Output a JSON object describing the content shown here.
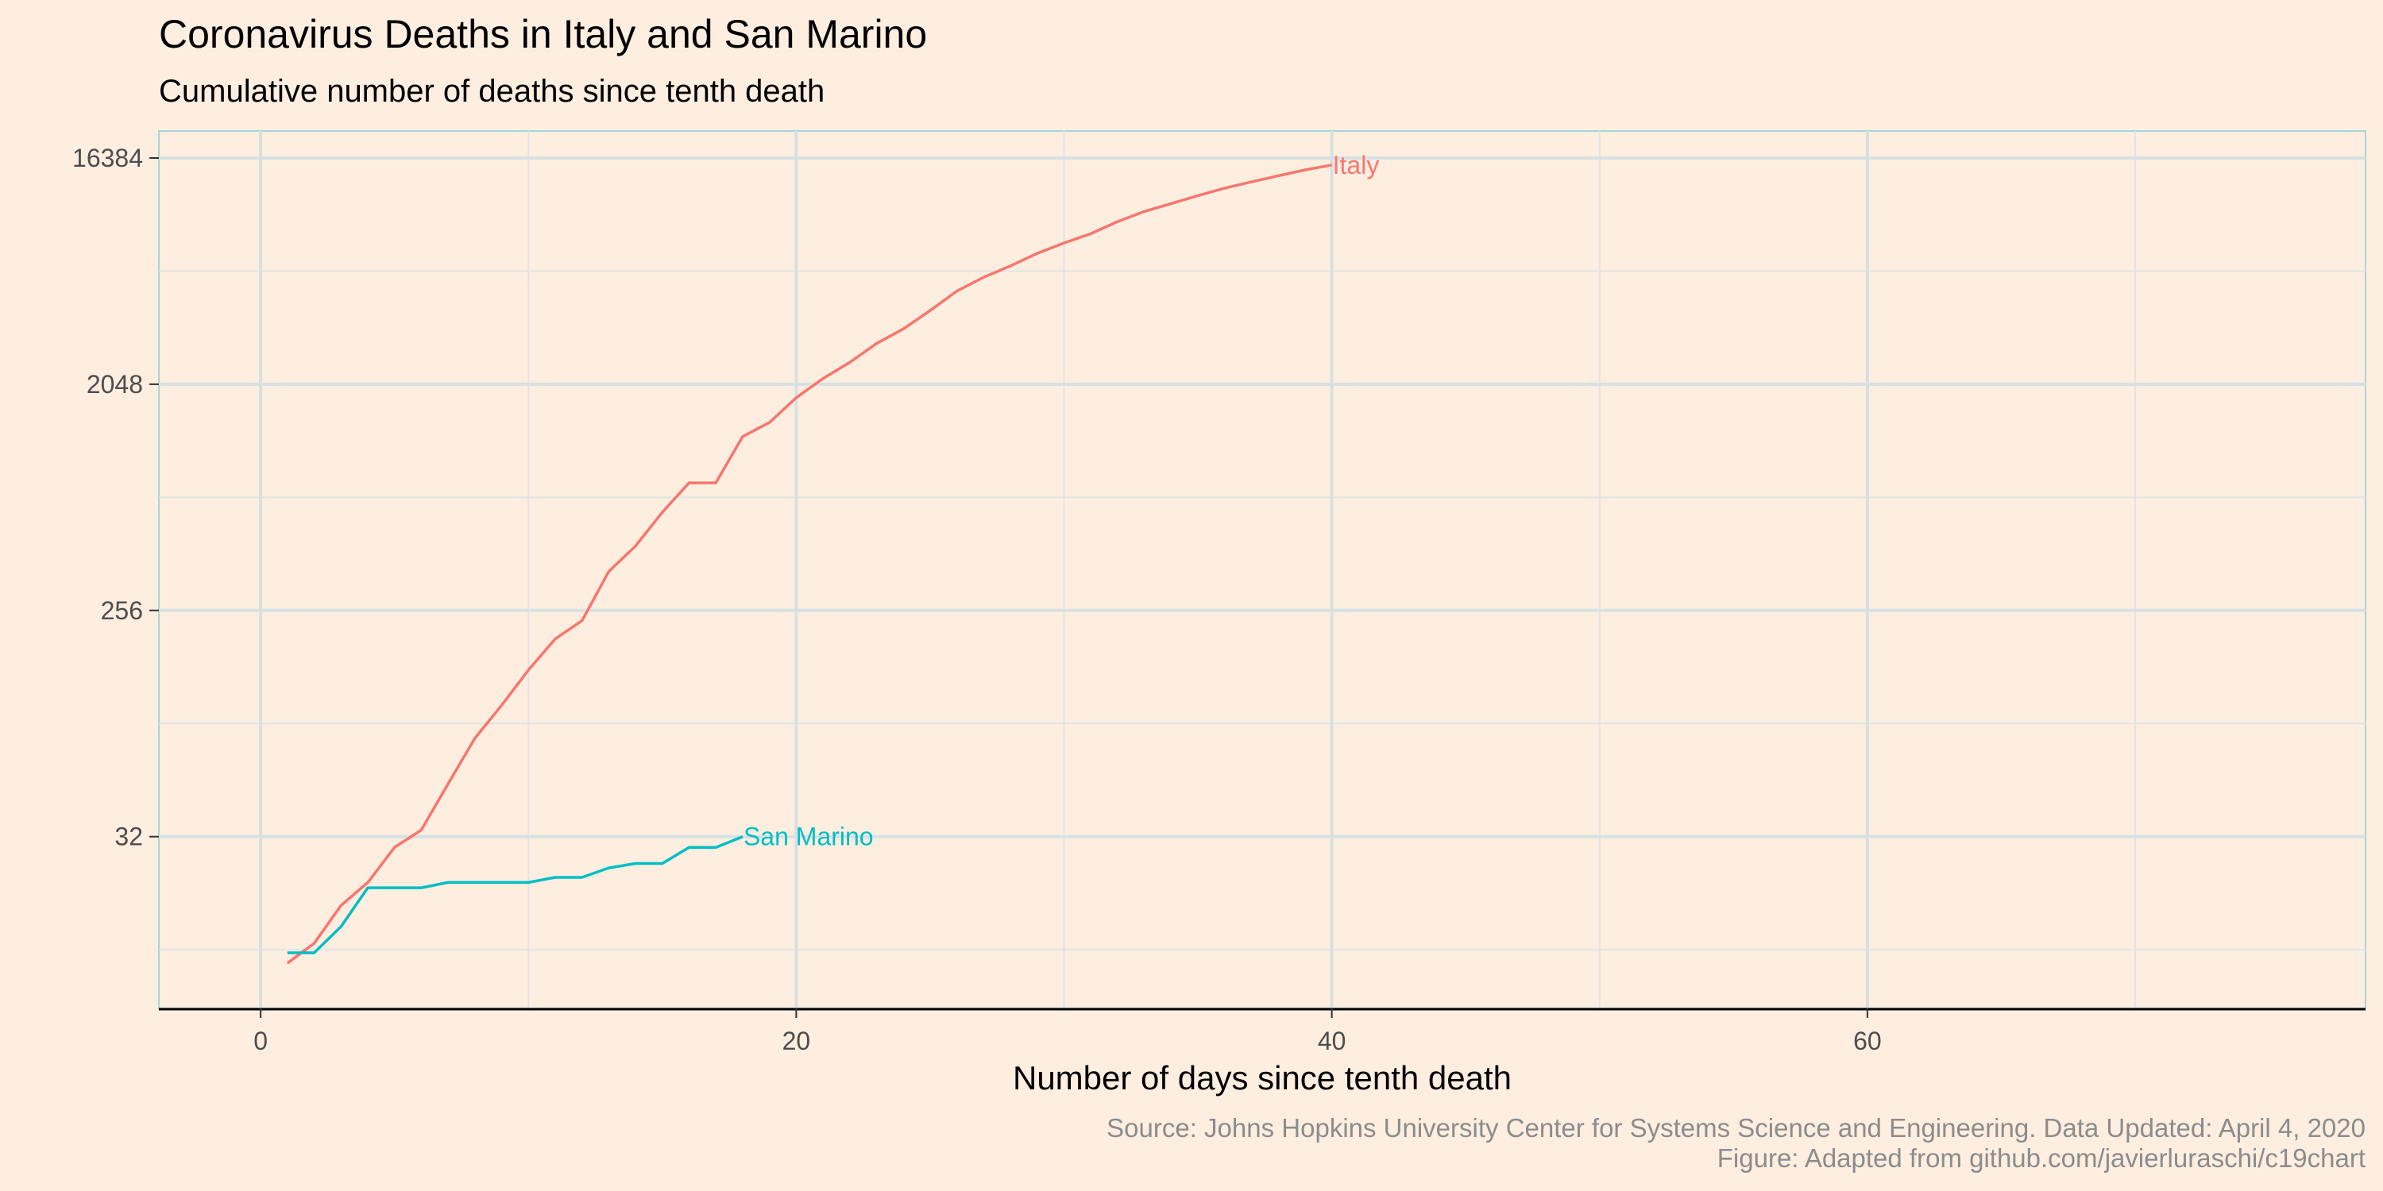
{
  "chart_data": {
    "type": "line",
    "title": "Coronavirus Deaths in Italy and San Marino",
    "subtitle": "Cumulative number of deaths since tenth death",
    "xlabel": "Number of days since tenth death",
    "ylabel": "",
    "y_scale": "log2",
    "xlim": [
      -3.8,
      78.6
    ],
    "ylim": [
      6.6,
      21000
    ],
    "x_ticks": [
      0,
      20,
      40,
      60
    ],
    "y_ticks": [
      32,
      256,
      2048,
      16384
    ],
    "grid": true,
    "caption": [
      "Source: Johns Hopkins University Center for Systems Science and Engineering. Data Updated: April 4, 2020",
      "Figure: Adapted from github.com/javierluraschi/c19chart"
    ],
    "series": [
      {
        "name": "Italy",
        "color": "#f8766d",
        "x": [
          1,
          2,
          3,
          4,
          5,
          6,
          7,
          8,
          9,
          10,
          11,
          12,
          13,
          14,
          15,
          16,
          17,
          18,
          19,
          20,
          21,
          22,
          23,
          24,
          25,
          26,
          27,
          28,
          29,
          30,
          31,
          32,
          33,
          34,
          35,
          36,
          37,
          38,
          39,
          40
        ],
        "y": [
          10,
          12,
          17,
          21,
          29,
          34,
          52,
          79,
          107,
          148,
          197,
          233,
          366,
          463,
          631,
          827,
          827,
          1266,
          1441,
          1809,
          2158,
          2503,
          2978,
          3405,
          4032,
          4825,
          5476,
          6077,
          6820,
          7503,
          8165,
          9134,
          10023,
          10779,
          11591,
          12428,
          13155,
          13915,
          14681,
          15362
        ]
      },
      {
        "name": "San Marino",
        "color": "#00bfc4",
        "x": [
          1,
          2,
          3,
          4,
          5,
          6,
          7,
          8,
          9,
          10,
          11,
          12,
          13,
          14,
          15,
          16,
          17,
          18
        ],
        "y": [
          11,
          11,
          14,
          20,
          20,
          20,
          21,
          21,
          21,
          21,
          22,
          22,
          24,
          25,
          25,
          29,
          29,
          32
        ]
      }
    ]
  }
}
